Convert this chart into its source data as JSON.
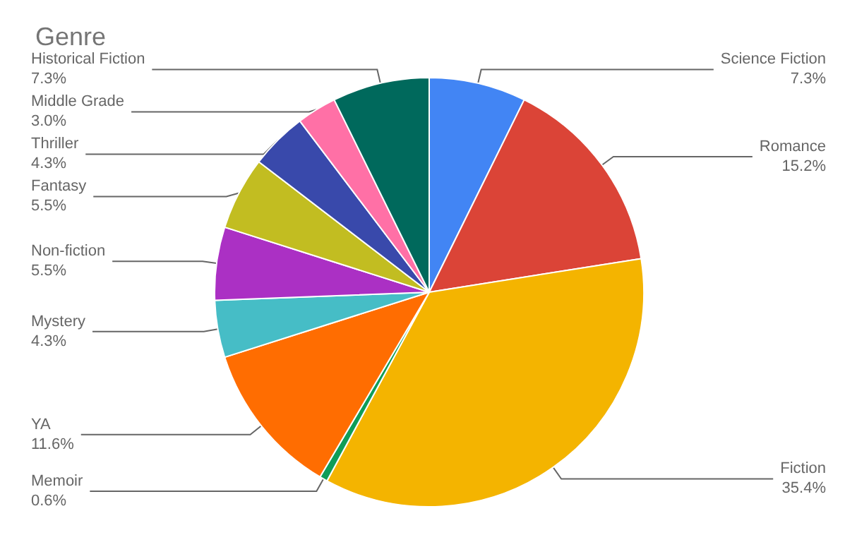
{
  "chart_data": {
    "type": "pie",
    "title": "Genre",
    "categories": [
      "Science Fiction",
      "Romance",
      "Fiction",
      "Memoir",
      "YA",
      "Mystery",
      "Non-fiction",
      "Fantasy",
      "Thriller",
      "Middle Grade",
      "Historical Fiction"
    ],
    "values": [
      7.3,
      15.2,
      35.4,
      0.6,
      11.6,
      4.3,
      5.5,
      5.5,
      4.3,
      3.0,
      7.3
    ],
    "value_labels": [
      "7.3%",
      "15.2%",
      "35.4%",
      "0.6%",
      "11.6%",
      "4.3%",
      "5.5%",
      "5.5%",
      "4.3%",
      "3.0%",
      "7.3%"
    ],
    "colors": [
      "#4285f4",
      "#db4437",
      "#f4b400",
      "#0f9d58",
      "#ff6d01",
      "#46bdc6",
      "#ab30c4",
      "#c2bd21",
      "#3949ab",
      "#ff70a6",
      "#00695c"
    ],
    "legend": false
  }
}
